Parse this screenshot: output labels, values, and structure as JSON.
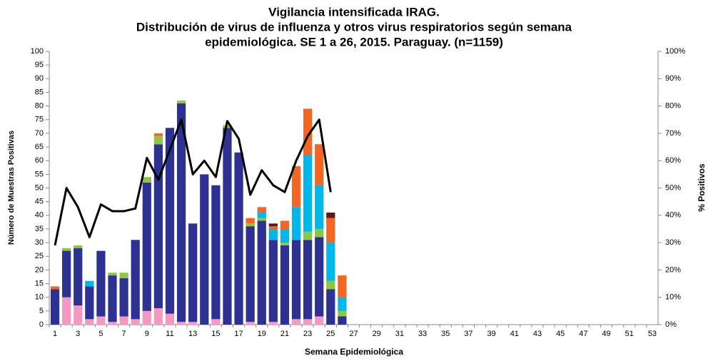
{
  "chart_data": {
    "type": "bar",
    "title": [
      "Vigilancia intensificada IRAG.",
      "Distribución de virus de influenza y otros virus respiratorios según semana",
      "epidemiológica. SE 1 a 26, 2015. Paraguay. (n=1159)"
    ],
    "ylabel": "Número de Muestras Positivas",
    "y2label": "% Positivos",
    "xlabel": "Semana Epidemiológica",
    "categories": [
      1,
      null,
      3,
      null,
      5,
      null,
      7,
      null,
      9,
      null,
      11,
      null,
      13,
      null,
      15,
      null,
      17,
      null,
      19,
      null,
      21,
      null,
      23,
      null,
      25,
      null,
      27,
      null,
      29,
      null,
      31,
      null,
      33,
      null,
      35,
      null,
      37,
      null,
      39,
      null,
      41,
      null,
      43,
      null,
      45,
      null,
      47,
      null,
      49,
      null,
      51,
      null,
      53
    ],
    "series": [
      {
        "color": "#f49ac1",
        "values": [
          0,
          10,
          7,
          2,
          3,
          1,
          3,
          2,
          5,
          6,
          4,
          1,
          1,
          0,
          2,
          0,
          0,
          1,
          0,
          1,
          0,
          2,
          2,
          3,
          0,
          0,
          null,
          null,
          null,
          null,
          null,
          null,
          null,
          null,
          null,
          null,
          null,
          null,
          null,
          null,
          null,
          null,
          null,
          null,
          null,
          null,
          null,
          null,
          null,
          null,
          null,
          null,
          null
        ]
      },
      {
        "color": "#2e3192",
        "values": [
          13,
          17,
          21,
          12,
          24,
          17,
          14,
          29,
          47,
          60,
          68,
          80,
          36,
          55,
          49,
          72,
          63,
          35,
          38,
          30,
          29,
          29,
          29,
          29,
          13,
          3,
          null,
          null,
          null,
          null,
          null,
          null,
          null,
          null,
          null,
          null,
          null,
          null,
          null,
          null,
          null,
          null,
          null,
          null,
          null,
          null,
          null,
          null,
          null,
          null,
          null,
          null,
          null
        ]
      },
      {
        "color": "#8dc63f",
        "values": [
          0,
          1,
          1,
          0,
          0,
          1,
          2,
          0,
          2,
          3,
          0,
          1,
          0,
          0,
          0,
          1,
          0,
          1,
          1,
          0,
          1,
          0,
          3,
          3,
          3,
          2,
          null,
          null,
          null,
          null,
          null,
          null,
          null,
          null,
          null,
          null,
          null,
          null,
          null,
          null,
          null,
          null,
          null,
          null,
          null,
          null,
          null,
          null,
          null,
          null,
          null,
          null,
          null
        ]
      },
      {
        "color": "#00b7eb",
        "values": [
          0,
          0,
          0,
          2,
          0,
          0,
          0,
          0,
          0,
          0,
          0,
          0,
          0,
          0,
          0,
          0,
          0,
          0,
          2,
          4,
          5,
          12,
          28,
          16,
          14,
          5,
          null,
          null,
          null,
          null,
          null,
          null,
          null,
          null,
          null,
          null,
          null,
          null,
          null,
          null,
          null,
          null,
          null,
          null,
          null,
          null,
          null,
          null,
          null,
          null,
          null,
          null,
          null
        ]
      },
      {
        "color": "#f26522",
        "values": [
          1,
          0,
          0,
          0,
          0,
          0,
          0,
          0,
          0,
          1,
          0,
          0,
          0,
          0,
          0,
          0,
          0,
          2,
          2,
          1,
          3,
          15,
          17,
          15,
          9,
          8,
          null,
          null,
          null,
          null,
          null,
          null,
          null,
          null,
          null,
          null,
          null,
          null,
          null,
          null,
          null,
          null,
          null,
          null,
          null,
          null,
          null,
          null,
          null,
          null,
          null,
          null,
          null
        ]
      },
      {
        "color": "#5a1a1a",
        "values": [
          0,
          0,
          0,
          0,
          0,
          0,
          0,
          0,
          0,
          0,
          0,
          0,
          0,
          0,
          0,
          0,
          0,
          0,
          0,
          1,
          0,
          0,
          0,
          0,
          2,
          0,
          null,
          null,
          null,
          null,
          null,
          null,
          null,
          null,
          null,
          null,
          null,
          null,
          null,
          null,
          null,
          null,
          null,
          null,
          null,
          null,
          null,
          null,
          null,
          null,
          null,
          null,
          null
        ]
      },
      {
        "type": "line",
        "axis": "y2",
        "color": "#000000",
        "values": [
          29,
          50,
          43,
          32,
          44,
          41.5,
          41.5,
          42.5,
          61,
          53,
          64,
          75,
          55,
          60,
          54,
          74.5,
          68,
          47.5,
          56.5,
          51,
          48.5,
          60,
          69,
          75,
          48.5,
          null,
          null,
          null,
          null,
          null,
          null,
          null,
          null,
          null,
          null,
          null,
          null,
          null,
          null,
          null,
          null,
          null,
          null,
          null,
          null,
          null,
          null,
          null,
          null,
          null,
          null,
          null,
          null
        ]
      }
    ],
    "ylim": [
      0,
      100
    ],
    "yticks": [
      0,
      5,
      10,
      15,
      20,
      25,
      30,
      35,
      40,
      45,
      50,
      55,
      60,
      65,
      70,
      75,
      80,
      85,
      90,
      95,
      100
    ],
    "y2lim": [
      0,
      100
    ],
    "y2ticks": [
      {
        "value": 0,
        "label": "0%"
      },
      {
        "value": 10,
        "label": "10%"
      },
      {
        "value": 20,
        "label": "20%"
      },
      {
        "value": 30,
        "label": "30%"
      },
      {
        "value": 40,
        "label": "40%"
      },
      {
        "value": 50,
        "label": "50%"
      },
      {
        "value": 60,
        "label": "60%"
      },
      {
        "value": 70,
        "label": "70%"
      },
      {
        "value": 80,
        "label": "80%"
      },
      {
        "value": 90,
        "label": "90%"
      },
      {
        "value": 100,
        "label": "100%"
      }
    ]
  }
}
